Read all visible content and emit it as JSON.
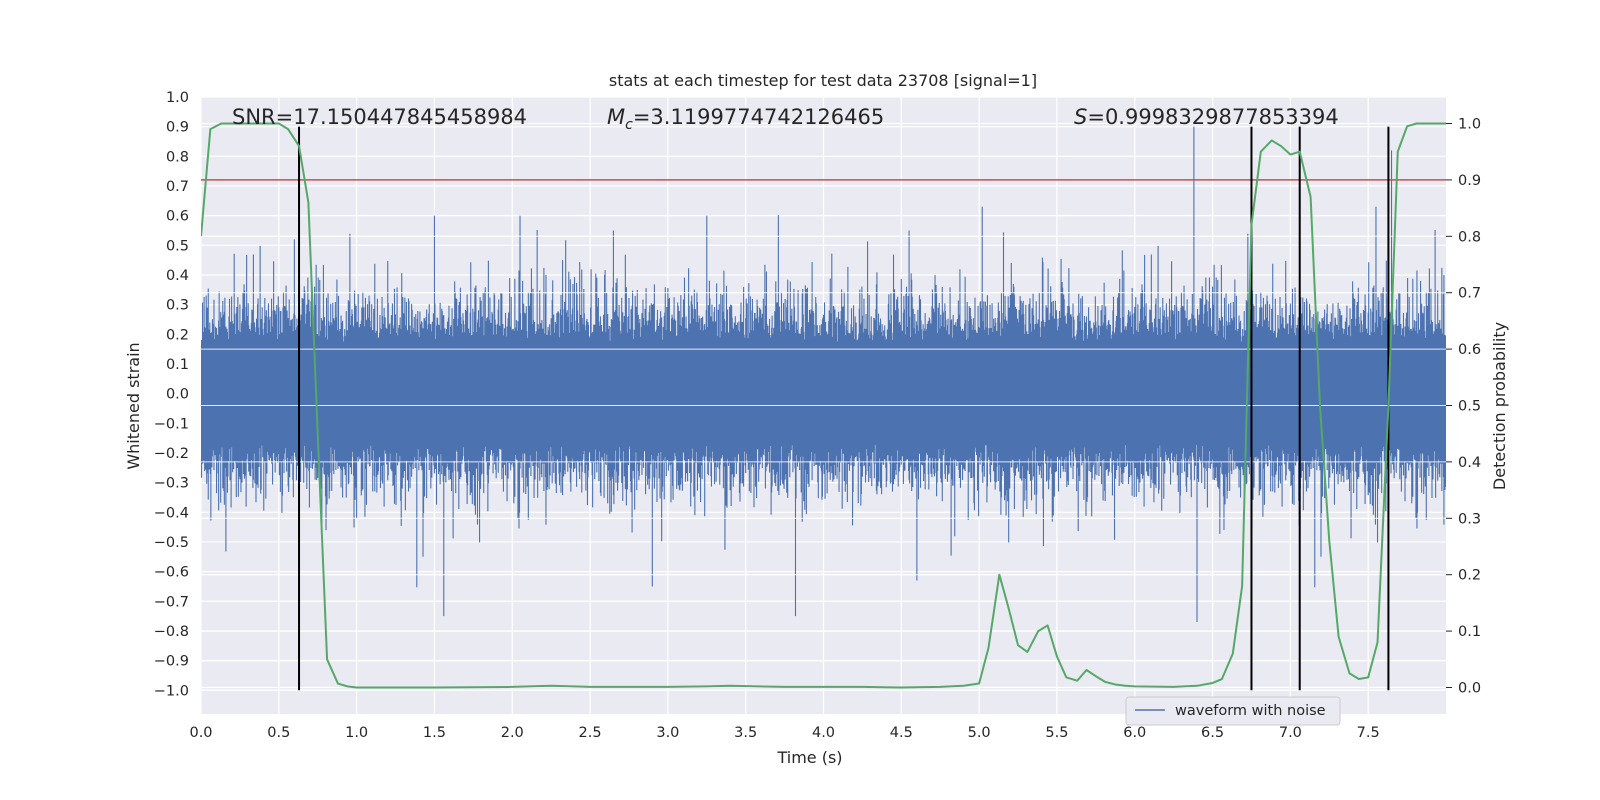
{
  "chart_data": {
    "type": "line",
    "title": "stats at each timestep for test data 23708 [signal=1]",
    "xlabel": "Time (s)",
    "ylabel": "Whitened strain",
    "y2label": "Detection probability",
    "xlim": [
      0.0,
      8.0
    ],
    "ylim": [
      -1.08,
      1.0
    ],
    "y2lim": [
      -0.047,
      1.047
    ],
    "x_ticks": [
      "0.0",
      "0.5",
      "1.0",
      "1.5",
      "2.0",
      "2.5",
      "3.0",
      "3.5",
      "4.0",
      "4.5",
      "5.0",
      "5.5",
      "6.0",
      "6.5",
      "7.0",
      "7.5"
    ],
    "y_ticks": [
      "1.0",
      "0.9",
      "0.8",
      "0.7",
      "0.6",
      "0.5",
      "0.4",
      "0.3",
      "0.2",
      "0.1",
      "0.0",
      "−0.1",
      "−0.2",
      "−0.3",
      "−0.4",
      "−0.5",
      "−0.6",
      "−0.7",
      "−0.8",
      "−0.9",
      "−1.0"
    ],
    "y2_ticks": [
      "1.0",
      "0.9",
      "0.8",
      "0.7",
      "0.6",
      "0.5",
      "0.4",
      "0.3",
      "0.2",
      "0.1",
      "0.0"
    ],
    "annotations": {
      "snr": "SNR=17.150447845458984",
      "mc_symbol": "M",
      "mc_sub": "c",
      "mc_value": "=3.1199774742126465",
      "s_symbol": "S",
      "s_value": "=0.9998329877853394"
    },
    "legend": {
      "location": "lower right",
      "entries": [
        "waveform with noise"
      ]
    },
    "grid": true,
    "series": [
      {
        "name": "waveform with noise",
        "color": "#4c72b0",
        "axis": "left",
        "note_values": "noise band roughly ±0.3 with sparse spikes",
        "spikes": [
          {
            "x": 0.6,
            "y": 0.52
          },
          {
            "x": 1.0,
            "y": -0.42
          },
          {
            "x": 1.5,
            "y": 0.6
          },
          {
            "x": 1.56,
            "y": -0.75
          },
          {
            "x": 2.05,
            "y": 0.6
          },
          {
            "x": 2.65,
            "y": 0.55
          },
          {
            "x": 2.9,
            "y": -0.65
          },
          {
            "x": 3.25,
            "y": 0.6
          },
          {
            "x": 3.82,
            "y": -0.75
          },
          {
            "x": 4.55,
            "y": 0.55
          },
          {
            "x": 4.6,
            "y": -0.63
          },
          {
            "x": 5.02,
            "y": 0.63
          },
          {
            "x": 6.38,
            "y": 0.9
          },
          {
            "x": 6.4,
            "y": -0.77
          },
          {
            "x": 7.55,
            "y": 0.63
          },
          {
            "x": 7.63,
            "y": -1.0
          },
          {
            "x": 7.65,
            "y": 0.82
          }
        ]
      },
      {
        "name": "",
        "color": "#55a868",
        "axis": "right",
        "x": [
          0.0,
          0.06,
          0.13,
          0.2,
          0.3,
          0.4,
          0.5,
          0.56,
          0.63,
          0.69,
          0.75,
          0.81,
          0.88,
          0.94,
          1.0,
          1.5,
          2.0,
          2.25,
          2.5,
          3.0,
          3.25,
          3.4,
          3.75,
          4.0,
          4.25,
          4.5,
          4.75,
          4.9,
          5.0,
          5.06,
          5.13,
          5.19,
          5.25,
          5.31,
          5.38,
          5.44,
          5.5,
          5.56,
          5.63,
          5.69,
          5.75,
          5.81,
          5.88,
          5.94,
          6.0,
          6.25,
          6.4,
          6.5,
          6.56,
          6.63,
          6.69,
          6.75,
          6.81,
          6.88,
          6.94,
          7.0,
          7.06,
          7.13,
          7.19,
          7.25,
          7.31,
          7.38,
          7.44,
          7.5,
          7.56,
          7.63,
          7.69,
          7.75,
          7.81,
          8.0
        ],
        "y": [
          0.8,
          0.99,
          1.0,
          1.0,
          1.0,
          1.0,
          1.0,
          0.99,
          0.96,
          0.86,
          0.45,
          0.05,
          0.007,
          0.002,
          0.0,
          0.0,
          0.001,
          0.003,
          0.001,
          0.001,
          0.002,
          0.003,
          0.001,
          0.001,
          0.001,
          0.0,
          0.001,
          0.003,
          0.007,
          0.07,
          0.2,
          0.14,
          0.075,
          0.063,
          0.1,
          0.11,
          0.055,
          0.018,
          0.012,
          0.031,
          0.02,
          0.01,
          0.005,
          0.003,
          0.002,
          0.001,
          0.003,
          0.008,
          0.015,
          0.06,
          0.18,
          0.82,
          0.95,
          0.97,
          0.96,
          0.945,
          0.95,
          0.87,
          0.5,
          0.26,
          0.09,
          0.025,
          0.015,
          0.018,
          0.08,
          0.5,
          0.95,
          0.995,
          1.0,
          1.0
        ]
      },
      {
        "name": "",
        "color": "#c44e52",
        "axis": "right",
        "type": "hline",
        "y": 0.9
      }
    ],
    "vlines": [
      {
        "x": 0.63,
        "ymin": -1.0,
        "ymax": 0.9
      },
      {
        "x": 6.75,
        "ymin": -1.0,
        "ymax": 0.9
      },
      {
        "x": 7.06,
        "ymin": -1.0,
        "ymax": 0.9
      },
      {
        "x": 7.63,
        "ymin": -1.0,
        "ymax": 0.9
      }
    ]
  }
}
